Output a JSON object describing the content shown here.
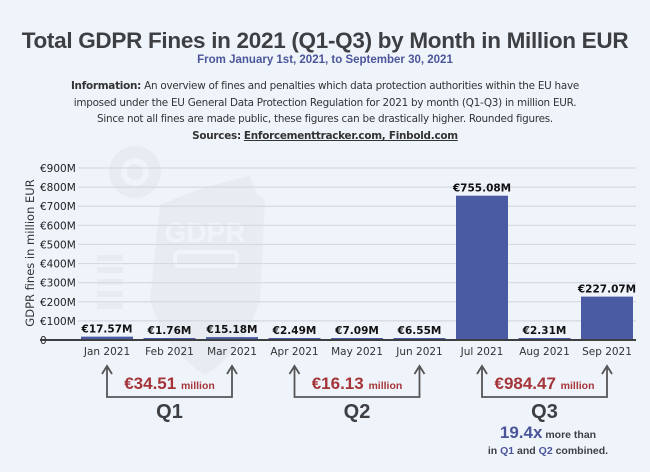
{
  "header": {
    "title": "Total GDPR Fines in 2021 (Q1-Q3) by Month in Million EUR",
    "subtitle": "From January 1st, 2021, to September 30, 2021",
    "info_label": "Information:",
    "info_line1": " An overview of fines and penalties which data protection authorities within the EU have",
    "info_line2": "imposed under the EU General Data Protection Regulation for 2021 by month (Q1-Q3) in million EUR.",
    "info_line3": "Since not all fines are made public, these figures can be drastically higher. Rounded figures.",
    "sources_label": "Sources:",
    "sources_link": "Enforcementtracker.com, Finbold.com"
  },
  "watermark": {
    "text": "GDPR",
    "icon": "shield-gear-icon"
  },
  "colors": {
    "bar": "#4b5ba3",
    "quarter_total": "#a53538",
    "accent": "#4b559a",
    "grid": "#d5d9e0",
    "axis": "#3d3f42"
  },
  "chart_data": {
    "type": "bar",
    "title": "Total GDPR Fines in 2021 (Q1-Q3) by Month in Million EUR",
    "xlabel": "",
    "ylabel": "GDPR fines in million EUR",
    "ylim": [
      0,
      900
    ],
    "yticks": [
      0,
      100,
      200,
      300,
      400,
      500,
      600,
      700,
      800,
      900
    ],
    "ytick_labels": [
      "0",
      "€100M",
      "€200M",
      "€300M",
      "€400M",
      "€500M",
      "€600M",
      "€700M",
      "€800M",
      "€900M"
    ],
    "grid": true,
    "categories": [
      "Jan 2021",
      "Feb 2021",
      "Mar 2021",
      "Apr 2021",
      "May 2021",
      "Jun 2021",
      "Jul 2021",
      "Aug 2021",
      "Sep 2021"
    ],
    "values": [
      17.57,
      1.76,
      15.18,
      2.49,
      7.09,
      6.55,
      755.08,
      2.31,
      227.07
    ],
    "data_labels": [
      "€17.57M",
      "€1.76M",
      "€15.18M",
      "€2.49M",
      "€7.09M",
      "€6.55M",
      "€755.08M",
      "€2.31M",
      "€227.07M"
    ],
    "quarters": [
      {
        "name": "Q1",
        "total": "€34.51",
        "unit": "million",
        "first": 0,
        "last": 2
      },
      {
        "name": "Q2",
        "total": "€16.13",
        "unit": "million",
        "first": 3,
        "last": 5
      },
      {
        "name": "Q3",
        "total": "€984.47",
        "unit": "million",
        "first": 6,
        "last": 8
      }
    ],
    "annotation": {
      "multiplier": "19.4x",
      "line1_rest": " more than",
      "line2_pre": "in ",
      "q1": "Q1",
      "mid": " and ",
      "q2": "Q2",
      "line2_post": " combined."
    }
  }
}
